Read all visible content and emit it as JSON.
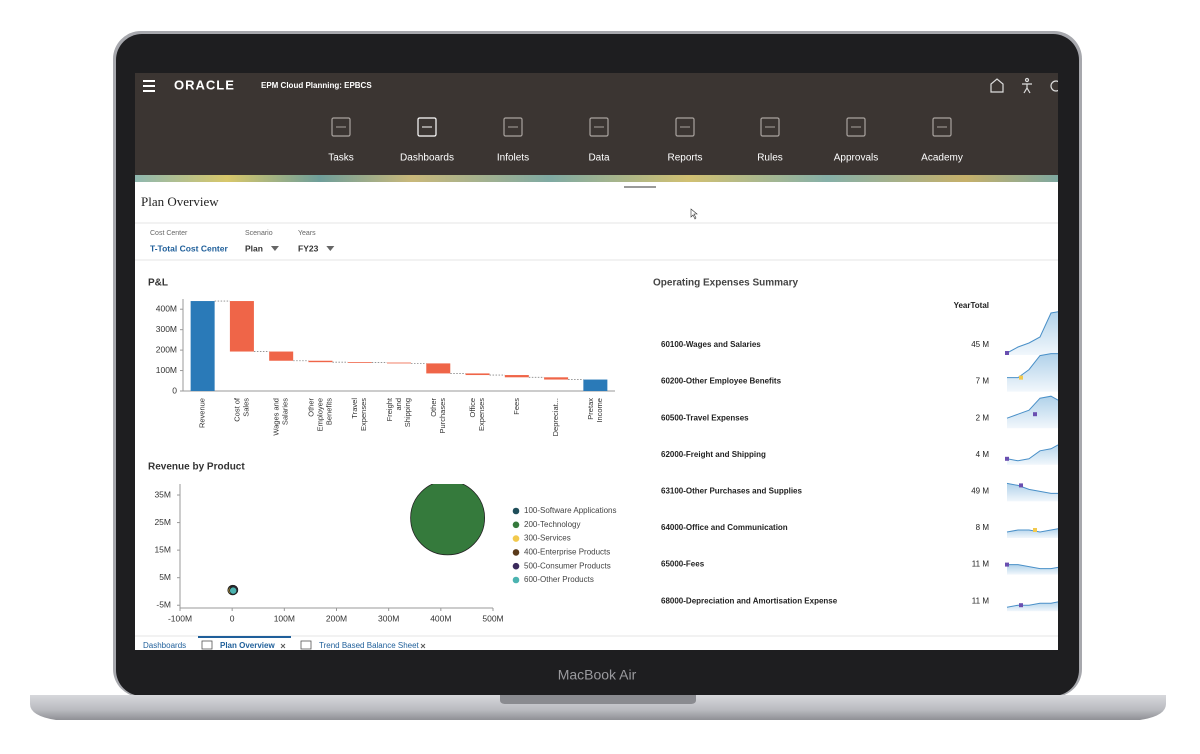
{
  "device_label": "MacBook Air",
  "header": {
    "brand": "ORACLE",
    "app": "EPM Cloud Planning: EPBCS"
  },
  "nav": [
    "Tasks",
    "Dashboards",
    "Infolets",
    "Data",
    "Reports",
    "Rules",
    "Approvals",
    "Academy"
  ],
  "page_title": "Plan Overview",
  "filters": [
    {
      "label": "Cost Center",
      "value": "T-Total Cost Center"
    },
    {
      "label": "Scenario",
      "value": "Plan"
    },
    {
      "label": "Years",
      "value": "FY23"
    }
  ],
  "pnl": {
    "type": "waterfall",
    "title": "P&L",
    "categories": [
      [
        "Revenue"
      ],
      [
        "Cost of",
        "Sales"
      ],
      [
        "Wages and",
        "Salaries"
      ],
      [
        "Other",
        "Employee",
        "Benefits"
      ],
      [
        "Travel",
        "Expenses"
      ],
      [
        "Freight",
        "and",
        "Shipping"
      ],
      [
        "Other",
        "Purchases"
      ],
      [
        "Office",
        "Expenses"
      ],
      [
        "Fees"
      ],
      [
        "Depreciat..."
      ],
      [
        "Pretax",
        "Income"
      ]
    ],
    "values": [
      440,
      -247,
      -45,
      -7,
      -2,
      -4,
      -49,
      -8,
      -11,
      -11,
      56
    ],
    "colors": [
      "#2a7ab8",
      "#ef6548",
      "#ef6548",
      "#ef6548",
      "#ef6548",
      "#ef6548",
      "#ef6548",
      "#ef6548",
      "#ef6548",
      "#ef6548",
      "#2a7ab8"
    ],
    "ylim": [
      0,
      450
    ],
    "yticks": [
      0,
      {
        "value": 100,
        "label": "100M"
      },
      {
        "value": 200,
        "label": "200M"
      },
      {
        "value": 300,
        "label": "300M"
      },
      {
        "value": 400,
        "label": "400M"
      }
    ]
  },
  "revenue_by_product": {
    "type": "bubble",
    "title": "Revenue by Product",
    "series": [
      {
        "name": "100-Software Applications",
        "color": "#1f4e5a",
        "x": 2,
        "y": 0.6,
        "size": 6
      },
      {
        "name": "200-Technology",
        "color": "#357a3c",
        "x": 413,
        "y": 26.7,
        "size": 413
      },
      {
        "name": "300-Services",
        "color": "#f2c94c",
        "x": 0,
        "y": 0.4,
        "size": 5
      },
      {
        "name": "400-Enterprise Products",
        "color": "#5a3a1a",
        "x": 1,
        "y": 0.5,
        "size": 7
      },
      {
        "name": "500-Consumer Products",
        "color": "#3b2a5c",
        "x": 3,
        "y": 0.5,
        "size": 5
      },
      {
        "name": "600-Other Products",
        "color": "#4bb3b0",
        "x": 2,
        "y": 0.3,
        "size": 4
      }
    ],
    "xlim": [
      -100,
      500
    ],
    "xticks": [
      {
        "value": -100,
        "label": "-100M"
      },
      0,
      {
        "value": 100,
        "label": "100M"
      },
      {
        "value": 200,
        "label": "200M"
      },
      {
        "value": 300,
        "label": "300M"
      },
      {
        "value": 400,
        "label": "400M"
      },
      {
        "value": 500,
        "label": "500M"
      }
    ],
    "ylim": [
      -6,
      39
    ],
    "yticks": [
      {
        "value": -5,
        "label": "-5M"
      },
      {
        "value": 5,
        "label": "5M"
      },
      {
        "value": 15,
        "label": "15M"
      },
      {
        "value": 25,
        "label": "25M"
      },
      {
        "value": 35,
        "label": "35M"
      }
    ]
  },
  "opex": {
    "title": "Operating Expenses Summary",
    "column": "YearTotal",
    "rows": [
      [
        "60100-Wages and Salaries",
        "45 M"
      ],
      [
        "60200-Other Employee Benefits",
        "7 M"
      ],
      [
        "60500-Travel Expenses",
        "2 M"
      ],
      [
        "62000-Freight and Shipping",
        "4 M"
      ],
      [
        "63100-Other Purchases and Supplies",
        "49 M"
      ],
      [
        "64000-Office and Communication",
        "8 M"
      ],
      [
        "65000-Fees",
        "11 M"
      ],
      [
        "68000-Depreciation and Amortisation Expense",
        "11 M"
      ]
    ]
  },
  "tabs": [
    "Dashboards",
    "Plan Overview",
    "Trend Based Balance Sheet"
  ]
}
